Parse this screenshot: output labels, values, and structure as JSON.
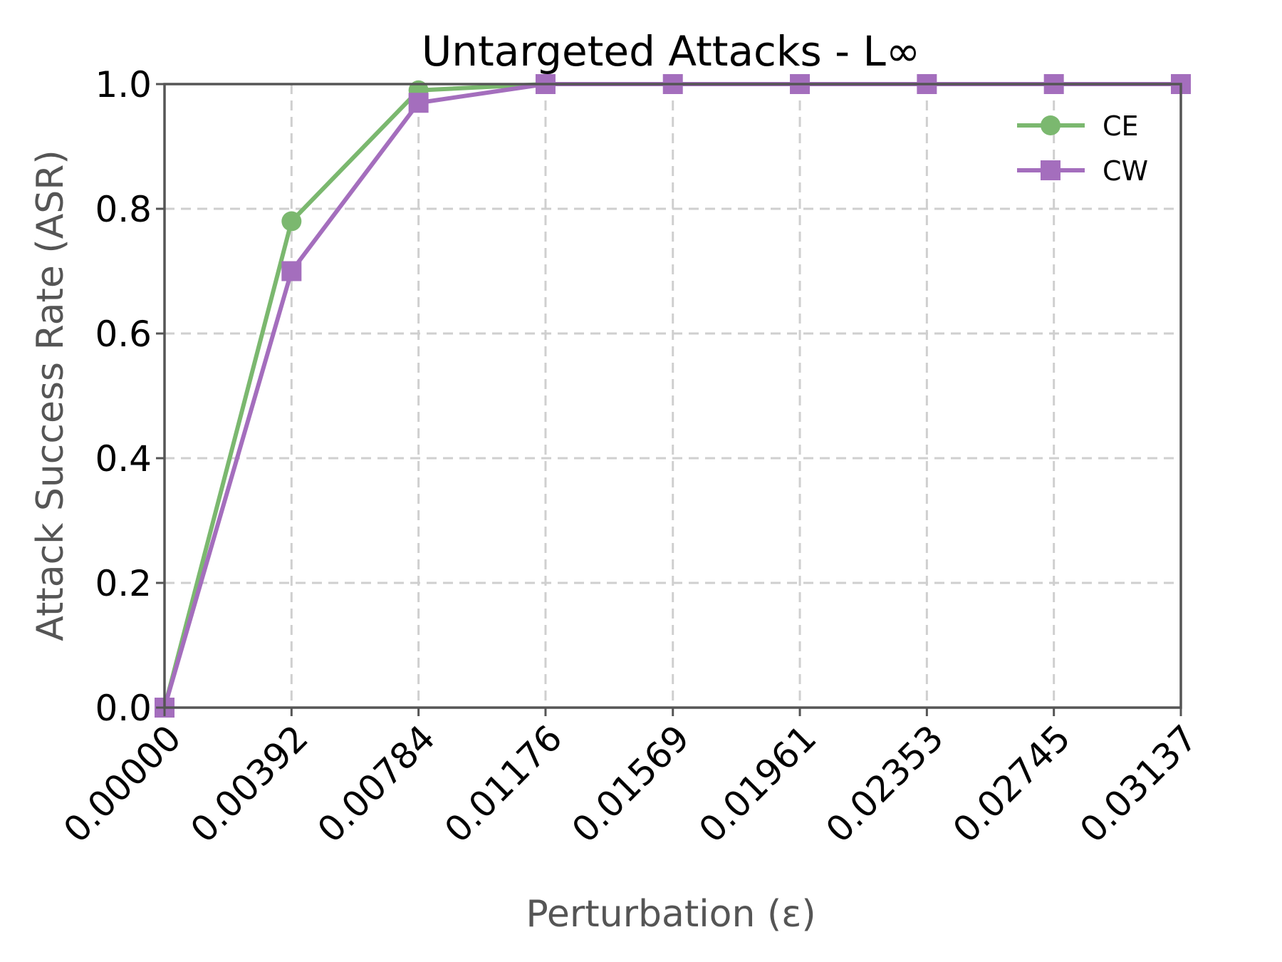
{
  "chart_data": {
    "type": "line",
    "title": "Untargeted Attacks - L∞",
    "xlabel": "Perturbation (ε)",
    "ylabel": "Attack Success Rate (ASR)",
    "x_tick_labels": [
      "0.00000",
      "0.00392",
      "0.00784",
      "0.01176",
      "0.01569",
      "0.01961",
      "0.02353",
      "0.02745",
      "0.03137"
    ],
    "x": [
      0.0,
      0.00392,
      0.00784,
      0.01176,
      0.01569,
      0.01961,
      0.02353,
      0.02745,
      0.03137
    ],
    "xlim": [
      0.0,
      0.03137
    ],
    "ylim": [
      0.0,
      1.0
    ],
    "y_ticks": [
      0.0,
      0.2,
      0.4,
      0.6,
      0.8,
      1.0
    ],
    "y_tick_labels": [
      "0.0",
      "0.2",
      "0.4",
      "0.6",
      "0.8",
      "1.0"
    ],
    "grid": true,
    "legend_position": "top-right",
    "series": [
      {
        "name": "CE",
        "marker": "circle",
        "color": "#7bb86f",
        "values": [
          0.0,
          0.78,
          0.99,
          1.0,
          1.0,
          1.0,
          1.0,
          1.0,
          1.0
        ]
      },
      {
        "name": "CW",
        "marker": "square",
        "color": "#a46ebd",
        "values": [
          0.0,
          0.7,
          0.97,
          1.0,
          1.0,
          1.0,
          1.0,
          1.0,
          1.0
        ]
      }
    ]
  }
}
